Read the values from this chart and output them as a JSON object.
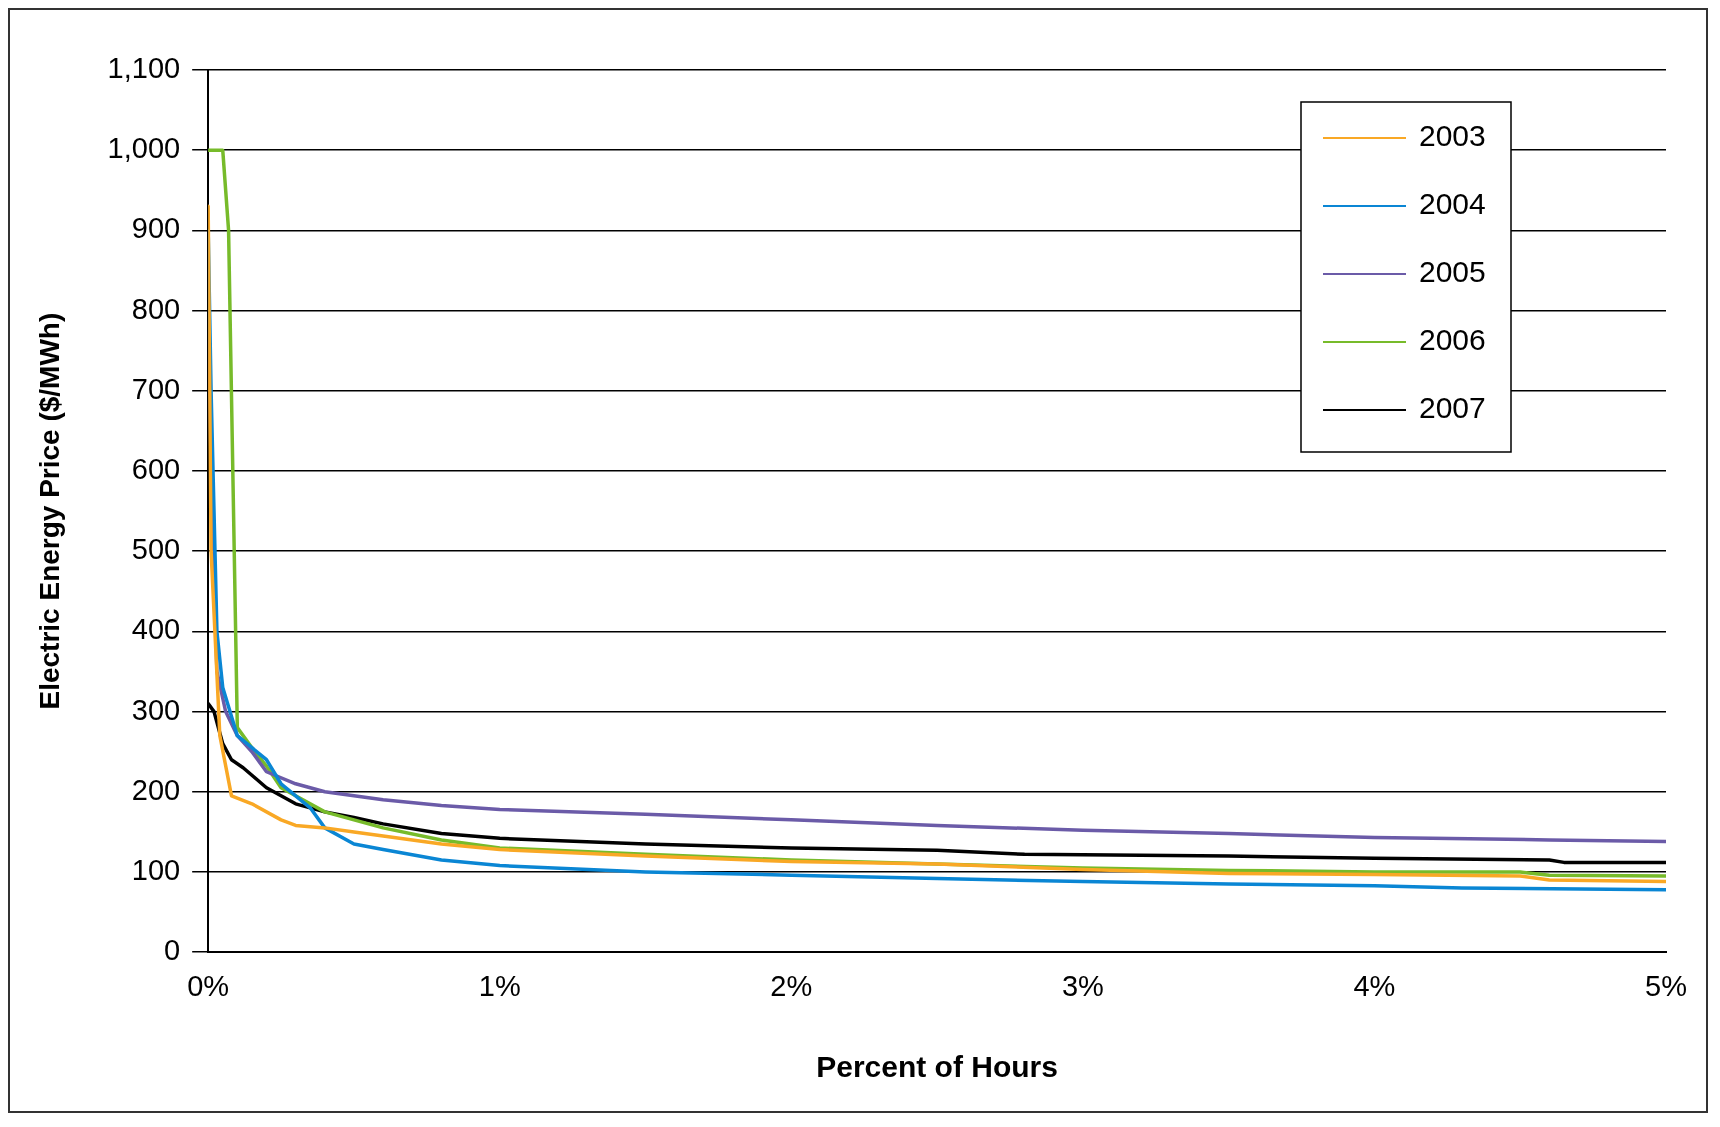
{
  "chart_data": {
    "type": "line",
    "xlabel": "Percent of Hours",
    "ylabel": "Electric Energy Price ($/MWh)",
    "xlim": [
      0,
      5
    ],
    "xticks": [
      {
        "value": 0,
        "label": "0%"
      },
      {
        "value": 1,
        "label": "1%"
      },
      {
        "value": 2,
        "label": "2%"
      },
      {
        "value": 3,
        "label": "3%"
      },
      {
        "value": 4,
        "label": "4%"
      },
      {
        "value": 5,
        "label": "5%"
      }
    ],
    "ylim": [
      0,
      1100
    ],
    "yticks": [
      0,
      100,
      200,
      300,
      400,
      500,
      600,
      700,
      800,
      900,
      {
        "value": 1000,
        "label": "1,000"
      },
      {
        "value": 1100,
        "label": "1,100"
      }
    ],
    "grid": "y",
    "legend": "top right",
    "marker": "none",
    "line_style": "solid",
    "series": [
      {
        "name": "2003",
        "color": "#f9a825",
        "x": [
          0,
          0.01,
          0.04,
          0.08,
          0.15,
          0.25,
          0.3,
          0.4,
          0.5,
          0.6,
          0.8,
          1,
          1.5,
          2,
          2.5,
          3,
          3.5,
          4,
          4.5,
          4.6,
          5
        ],
        "values": [
          930,
          500,
          270,
          195,
          185,
          165,
          158,
          155,
          150,
          145,
          135,
          128,
          120,
          113,
          110,
          103,
          98,
          97,
          95,
          90,
          88
        ]
      },
      {
        "name": "2004",
        "color": "#0a86d4",
        "x": [
          0,
          0.01,
          0.03,
          0.05,
          0.1,
          0.2,
          0.25,
          0.35,
          0.4,
          0.5,
          0.6,
          0.8,
          1,
          1.5,
          2,
          2.5,
          3,
          3.5,
          4,
          4.3,
          5
        ],
        "values": [
          900,
          700,
          400,
          330,
          270,
          240,
          210,
          180,
          155,
          135,
          128,
          115,
          108,
          100,
          96,
          92,
          88,
          85,
          83,
          80,
          78
        ]
      },
      {
        "name": "2005",
        "color": "#6b5ba8",
        "x": [
          0,
          0.01,
          0.03,
          0.06,
          0.1,
          0.15,
          0.2,
          0.3,
          0.4,
          0.5,
          0.6,
          0.8,
          1,
          1.5,
          2,
          2.5,
          3,
          3.5,
          4,
          4.6,
          5
        ],
        "values": [
          850,
          600,
          350,
          300,
          270,
          250,
          225,
          210,
          200,
          195,
          190,
          183,
          178,
          172,
          165,
          158,
          152,
          148,
          143,
          140,
          138
        ]
      },
      {
        "name": "2006",
        "color": "#77bb2a",
        "x": [
          0,
          0.05,
          0.07,
          0.1,
          0.15,
          0.2,
          0.25,
          0.3,
          0.4,
          0.5,
          0.6,
          0.8,
          1,
          1.5,
          2,
          2.5,
          3,
          3.5,
          4,
          4.5,
          4.6,
          5
        ],
        "values": [
          1000,
          1000,
          900,
          280,
          255,
          232,
          205,
          195,
          175,
          165,
          155,
          140,
          130,
          122,
          115,
          110,
          105,
          102,
          100,
          100,
          96,
          95
        ]
      },
      {
        "name": "2007",
        "color": "#000000",
        "x": [
          0,
          0.02,
          0.05,
          0.08,
          0.12,
          0.2,
          0.3,
          0.4,
          0.5,
          0.6,
          0.8,
          1,
          1.5,
          2,
          2.5,
          2.8,
          3.5,
          4,
          4.6,
          4.65,
          5
        ],
        "values": [
          310,
          300,
          260,
          240,
          230,
          205,
          185,
          175,
          168,
          160,
          148,
          142,
          135,
          130,
          127,
          122,
          120,
          117,
          115,
          112,
          112
        ]
      }
    ]
  }
}
